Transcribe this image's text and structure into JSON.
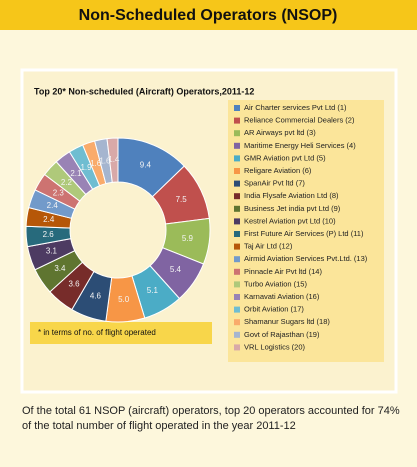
{
  "header": {
    "title": "Non-Scheduled Operators (NSOP)"
  },
  "chart_data": {
    "type": "donut",
    "title": "Top 20* Non-scheduled (Aircraft) Operators,2011-12",
    "categories": [
      "Air Charter services Pvt Ltd (1)",
      "Reliance Commercial Dealers (2)",
      "AR Airways pvt ltd (3)",
      "Maritime Energy Heli Services (4)",
      "GMR Aviation pvt Ltd (5)",
      "Religare Aviation (6)",
      "SpanAir Pvt ltd (7)",
      "India Flysafe Aviation Ltd (8)",
      "Business Jet india pvt Ltd (9)",
      "Kestrel Aviation pvt Ltd (10)",
      "First Future Air Services (P) Ltd (11)",
      "Taj Air Ltd (12)",
      "Airmid Aviation Services Pvt.Ltd. (13)",
      "Pinnacle Air Pvt ltd (14)",
      "Turbo Aviation (15)",
      "Karnavati Aviation (16)",
      "Orbit Aviation (17)",
      "Shamanur Sugars ltd (18)",
      "Govt of Rajasthan (19)",
      "VRL Logistics (20)"
    ],
    "values": [
      9.4,
      7.5,
      5.9,
      5.4,
      5.1,
      5.0,
      4.6,
      3.6,
      3.4,
      3.1,
      2.6,
      2.4,
      2.4,
      2.3,
      2.2,
      2.1,
      1.9,
      1.6,
      1.6,
      1.4
    ],
    "value_labels": [
      "9.4",
      "7.5",
      "5.9",
      "5.4",
      "5.1",
      "5.0",
      "4.6",
      "3.6",
      "3.4",
      "3.1",
      "2.6",
      "2.4",
      "2.4",
      "2.3",
      "2.2",
      "2.1",
      "1.9",
      "1.6",
      "1.6",
      "1.4"
    ],
    "colors": [
      "#4f81bd",
      "#c0504d",
      "#9bbb59",
      "#8064a2",
      "#4bacc6",
      "#f79646",
      "#2c4d75",
      "#772c2a",
      "#5f7530",
      "#4d3b62",
      "#276a7c",
      "#b65708",
      "#729aca",
      "#cd7371",
      "#afc97a",
      "#9983b5",
      "#6fbdd1",
      "#f9ab6b",
      "#a5b5cf",
      "#d8a9a8"
    ],
    "footnote": "* in terms of no. of flight operated"
  },
  "caption": "Of the total 61 NSOP (aircraft) operators, top 20 operators accounted for 74% of the total number of flight operated in the year 2011-12"
}
